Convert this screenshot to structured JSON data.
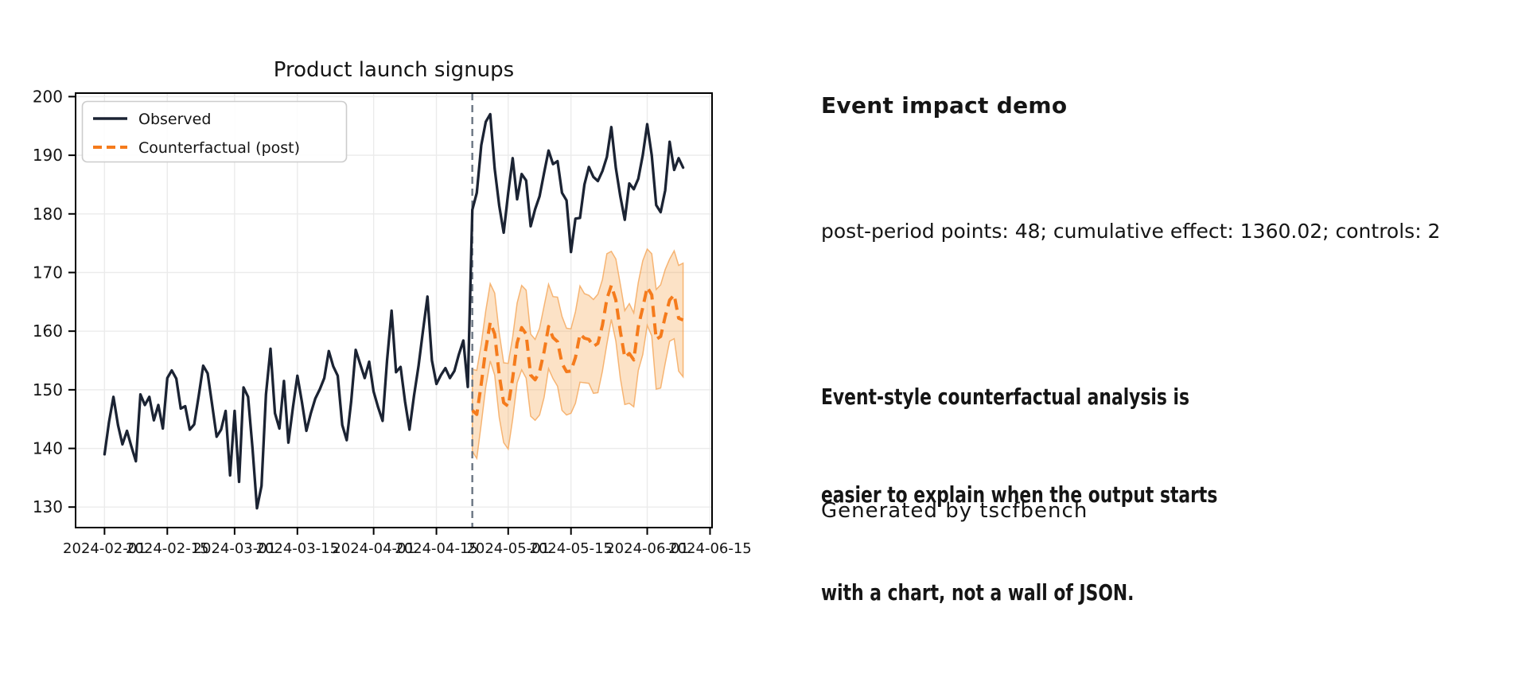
{
  "page": {
    "background": "#ffffff"
  },
  "panel": {
    "heading": "Event impact demo",
    "stats_line": "post-period points: 48; cumulative effect: 1360.02; controls: 2",
    "headline_lines": [
      "Event-style counterfactual analysis is",
      "easier to explain when the output starts",
      "with a chart, not a wall of JSON."
    ],
    "footer": "Generated by tscfbench"
  },
  "chart_data": {
    "type": "line",
    "title": "Product launch signups",
    "xlabel": "",
    "ylabel": "",
    "grid": true,
    "legend_position": "upper-left",
    "x_start_date": "2024-02-01",
    "x_unit": "days since 2024-02-01",
    "event_date": "2024-04-23",
    "event_day_index": 82,
    "post_period_points": 48,
    "cumulative_effect": 1360.02,
    "xlim_days": [
      -6.45,
      135.45
    ],
    "ylim": [
      126.5,
      200.6
    ],
    "ytick_values": [
      130,
      140,
      150,
      160,
      170,
      180,
      190,
      200
    ],
    "xtick_days": [
      0,
      14,
      29,
      43,
      60,
      74,
      90,
      104,
      121,
      135
    ],
    "xtick_labels": [
      "2024-02-01",
      "2024-02-15",
      "2024-03-01",
      "2024-03-15",
      "2024-04-01",
      "2024-04-15",
      "2024-05-01",
      "2024-05-15",
      "2024-06-01",
      "2024-06-15"
    ],
    "colors": {
      "observed": "#1b2333",
      "counterfactual": "#f57b1c",
      "band_fill": "#f59e42",
      "band_edge": "#f5a95f",
      "event_line": "#6a7582",
      "grid": "#ebebeb",
      "frame": "#000000",
      "text": "#141414",
      "legend_border": "#cccccc"
    },
    "series": [
      {
        "name": "Observed",
        "style": "solid",
        "x_day_offset": 0,
        "values": [
          139.0,
          144.5,
          148.8,
          144.0,
          140.7,
          143.0,
          140.3,
          137.8,
          149.2,
          147.4,
          148.8,
          144.8,
          147.4,
          143.4,
          152.0,
          153.3,
          151.9,
          146.8,
          147.2,
          143.2,
          144.1,
          149.0,
          154.1,
          152.8,
          147.4,
          142.0,
          143.2,
          146.4,
          135.4,
          146.4,
          134.3,
          150.4,
          148.8,
          140.0,
          129.8,
          133.6,
          149.2,
          157.0,
          146.0,
          143.4,
          151.5,
          141.0,
          147.0,
          152.4,
          148.0,
          143.0,
          146.0,
          148.5,
          150.1,
          152.0,
          156.6,
          154.0,
          152.4,
          144.0,
          141.4,
          148.0,
          156.8,
          154.4,
          152.0,
          154.8,
          149.7,
          147.0,
          144.7,
          155.0,
          163.5,
          153.0,
          153.9,
          148.0,
          143.2,
          149.0,
          154.0,
          160.0,
          165.9,
          155.0,
          151.0,
          152.5,
          153.7,
          152.0,
          153.2,
          156.0,
          158.4,
          150.5,
          180.7,
          183.6,
          191.7,
          195.7,
          197.0,
          187.7,
          181.4,
          176.8,
          183.6,
          189.5,
          182.5,
          186.8,
          185.7,
          177.9,
          180.8,
          183.0,
          187.0,
          190.8,
          188.5,
          189.0,
          183.6,
          182.3,
          173.5,
          179.2,
          179.3,
          185.0,
          188.0,
          186.3,
          185.6,
          187.3,
          189.7,
          194.8,
          187.8,
          183.0,
          179.0,
          185.2,
          184.2,
          186.0,
          190.0,
          195.3,
          190.0,
          181.5,
          180.3,
          184.0,
          192.3,
          187.5,
          189.5,
          187.9
        ]
      },
      {
        "name": "Counterfactual (post)",
        "style": "dashed",
        "x_day_offset": 82,
        "values": [
          146.5,
          145.8,
          151.0,
          157.0,
          161.5,
          159.5,
          152.5,
          147.8,
          147.2,
          152.0,
          158.0,
          160.6,
          159.5,
          152.5,
          151.7,
          153.1,
          156.5,
          160.8,
          158.9,
          158.2,
          154.5,
          153.1,
          153.2,
          155.5,
          159.5,
          158.8,
          158.6,
          157.4,
          157.9,
          161.0,
          165.5,
          167.8,
          165.3,
          160.0,
          155.5,
          156.2,
          155.1,
          160.8,
          164.0,
          167.5,
          166.2,
          158.6,
          159.1,
          162.5,
          165.3,
          166.2,
          162.2,
          161.9
        ]
      },
      {
        "name": "Counterfactual band lower",
        "style": "band-lower",
        "x_day_offset": 82,
        "values": [
          139.5,
          138.3,
          144.2,
          150.5,
          154.9,
          152.5,
          145.3,
          141.0,
          139.9,
          145.0,
          151.2,
          153.4,
          152.0,
          145.5,
          144.8,
          145.7,
          148.7,
          153.6,
          151.9,
          150.6,
          146.5,
          145.7,
          146.0,
          147.7,
          151.3,
          151.2,
          151.1,
          149.4,
          149.5,
          153.2,
          157.8,
          162.0,
          158.3,
          152.0,
          147.5,
          147.7,
          147.1,
          153.3,
          156.0,
          161.0,
          159.2,
          150.1,
          150.3,
          154.5,
          158.3,
          158.7,
          153.2,
          152.2
        ]
      },
      {
        "name": "Counterfactual band upper",
        "style": "band-upper",
        "x_day_offset": 82,
        "values": [
          153.5,
          153.3,
          157.8,
          163.5,
          168.1,
          166.5,
          159.7,
          154.6,
          154.5,
          159.0,
          164.8,
          167.8,
          167.0,
          159.5,
          158.6,
          160.5,
          164.3,
          168.0,
          165.9,
          165.8,
          162.5,
          160.5,
          160.4,
          163.3,
          167.7,
          166.4,
          166.1,
          165.4,
          166.3,
          168.8,
          173.2,
          173.6,
          172.3,
          168.0,
          163.5,
          164.7,
          163.1,
          168.3,
          172.0,
          174.0,
          173.2,
          167.1,
          167.9,
          170.5,
          172.3,
          173.7,
          171.2,
          171.6
        ]
      }
    ]
  }
}
